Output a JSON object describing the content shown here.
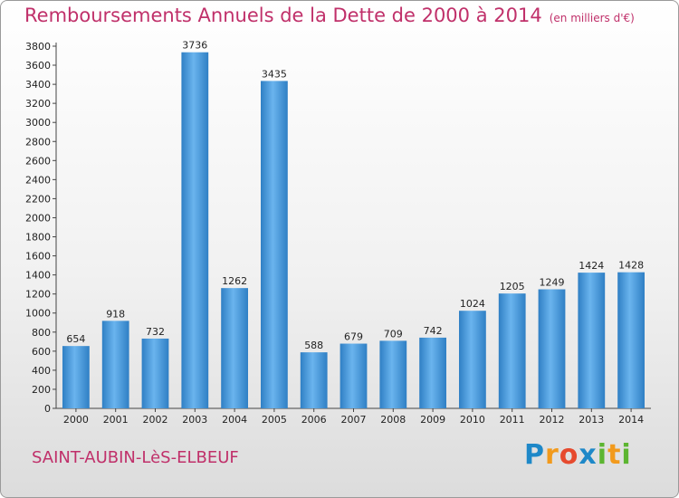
{
  "chart_data": {
    "type": "bar",
    "title": "Remboursements Annuels de la Dette de 2000 à 2014",
    "subtitle": "(en milliers d'€)",
    "categories": [
      "2000",
      "2001",
      "2002",
      "2003",
      "2004",
      "2005",
      "2006",
      "2007",
      "2008",
      "2009",
      "2010",
      "2011",
      "2012",
      "2013",
      "2014"
    ],
    "values": [
      654,
      918,
      732,
      3736,
      1262,
      3435,
      588,
      679,
      709,
      742,
      1024,
      1205,
      1249,
      1424,
      1428
    ],
    "xlabel": "",
    "ylabel": "",
    "ylim": [
      0,
      3800
    ],
    "yticks": [
      0,
      200,
      400,
      600,
      800,
      1000,
      1200,
      1400,
      1600,
      1800,
      2000,
      2200,
      2400,
      2600,
      2800,
      3000,
      3200,
      3400,
      3600,
      3800
    ],
    "grid": false,
    "legend": "none",
    "bar_color": "#3a8fd6"
  },
  "commune": "SAINT-AUBIN-LèS-ELBEUF",
  "logo": {
    "text": "Proxiti"
  }
}
